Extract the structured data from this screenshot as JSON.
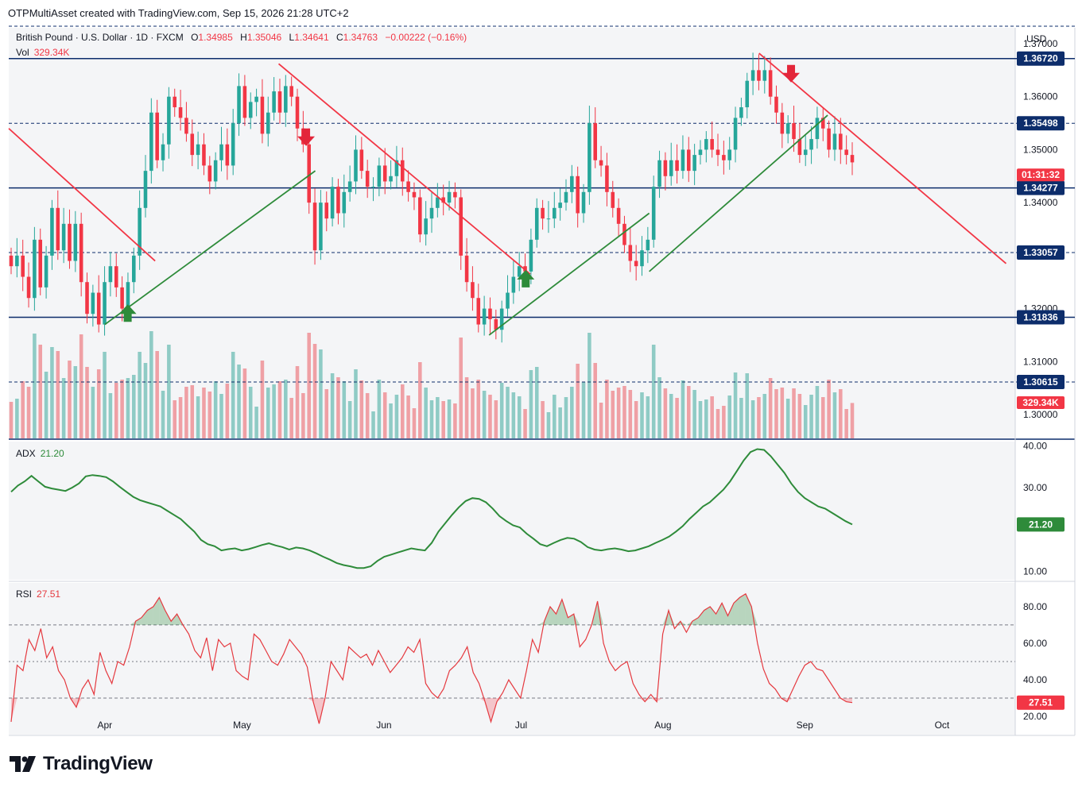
{
  "header": {
    "credit": "OTPMultiAsset created with TradingView.com, Sep 15, 2026 21:28 UTC+2"
  },
  "legend": {
    "symbol": "British Pound · U.S. Dollar · 1D · FXCM",
    "o_label": "O",
    "o": "1.34985",
    "h_label": "H",
    "h": "1.35046",
    "l_label": "L",
    "l": "1.34641",
    "c_label": "C",
    "c": "1.34763",
    "change": "−0.00222 (−0.16%)",
    "vol_label": "Vol",
    "vol_value": "329.34K",
    "adx_label": "ADX",
    "adx_value": "21.20",
    "rsi_label": "RSI",
    "rsi_value": "27.51"
  },
  "colors": {
    "up": "#26a69a",
    "down": "#f23645",
    "vol_up": "#8fcbc5",
    "vol_down": "#efa0a5",
    "navy": "#0d2d6b",
    "adx": "#2e8b3a",
    "rsi": "#e5393f",
    "trend_green": "#2e8b3a",
    "trend_red": "#f23645"
  },
  "brand": {
    "name": "TradingView"
  },
  "chart_data": {
    "type": "candlestick",
    "currency_label": "USD",
    "price_axis": {
      "ylim": [
        1.2955,
        1.373
      ],
      "ticks": [
        "1.37000",
        "1.36000",
        "1.35000",
        "1.34000",
        "1.32000",
        "1.31000",
        "1.30000"
      ]
    },
    "x_axis": {
      "labels": [
        "Apr",
        "May",
        "Jun",
        "Jul",
        "Aug",
        "Sep",
        "Oct"
      ],
      "dates": [
        "2026-04-01",
        "2026-05-01",
        "2026-06-01",
        "2026-07-01",
        "2026-08-01",
        "2026-09-01",
        "2026-10-01"
      ],
      "range": [
        "2026-03-11",
        "2026-10-17"
      ]
    },
    "horizontal_levels": [
      {
        "value": 1.3672,
        "label": "1.36720",
        "style": "solid"
      },
      {
        "value": 1.35498,
        "label": "1.35498",
        "style": "dashed"
      },
      {
        "value": 1.34277,
        "label": "1.34277",
        "style": "solid"
      },
      {
        "value": 1.33057,
        "label": "1.33057",
        "style": "dashed"
      },
      {
        "value": 1.31836,
        "label": "1.31836",
        "style": "solid"
      },
      {
        "value": 1.30615,
        "label": "1.30615",
        "style": "dashed"
      }
    ],
    "last_price": {
      "value": 1.34763,
      "label": "1.34763",
      "countdown": "01:31:32"
    },
    "trendlines": [
      {
        "color": "red",
        "from": [
          "2026-03-11",
          1.354
        ],
        "to": [
          "2026-04-12",
          1.329
        ]
      },
      {
        "color": "green",
        "from": [
          "2026-04-01",
          1.317
        ],
        "to": [
          "2026-05-17",
          1.346
        ]
      },
      {
        "color": "red",
        "from": [
          "2026-05-09",
          1.3662
        ],
        "to": [
          "2026-07-03",
          1.3265
        ]
      },
      {
        "color": "green",
        "from": [
          "2026-06-24",
          1.315
        ],
        "to": [
          "2026-07-29",
          1.338
        ]
      },
      {
        "color": "green",
        "from": [
          "2026-07-29",
          1.327
        ],
        "to": [
          "2026-09-06",
          1.3565
        ]
      },
      {
        "color": "red",
        "from": [
          "2026-08-22",
          1.3682
        ],
        "to": [
          "2026-10-15",
          1.3285
        ]
      }
    ],
    "signals": [
      {
        "type": "buy",
        "date": "2026-04-06",
        "price": 1.319
      },
      {
        "type": "sell",
        "date": "2026-05-15",
        "price": 1.3525
      },
      {
        "type": "buy",
        "date": "2026-07-02",
        "price": 1.3255
      },
      {
        "type": "sell",
        "date": "2026-08-29",
        "price": 1.3645
      }
    ],
    "candles_close": [
      1.328,
      1.33,
      1.326,
      1.322,
      1.333,
      1.324,
      1.33,
      1.339,
      1.331,
      1.336,
      1.329,
      1.336,
      1.325,
      1.319,
      1.323,
      1.317,
      1.325,
      1.328,
      1.324,
      1.32,
      1.325,
      1.33,
      1.339,
      1.346,
      1.357,
      1.348,
      1.351,
      1.36,
      1.358,
      1.356,
      1.353,
      1.349,
      1.351,
      1.347,
      1.344,
      1.348,
      1.351,
      1.347,
      1.355,
      1.362,
      1.356,
      1.359,
      1.36,
      1.353,
      1.357,
      1.361,
      1.357,
      1.362,
      1.36,
      1.354,
      1.351,
      1.34,
      1.331,
      1.34,
      1.337,
      1.343,
      1.338,
      1.342,
      1.344,
      1.35,
      1.346,
      1.343,
      1.343,
      1.347,
      1.344,
      1.345,
      1.348,
      1.344,
      1.342,
      1.341,
      1.334,
      1.337,
      1.339,
      1.341,
      1.34,
      1.342,
      1.341,
      1.33,
      1.325,
      1.322,
      1.317,
      1.32,
      1.318,
      1.316,
      1.32,
      1.323,
      1.326,
      1.328,
      1.327,
      1.333,
      1.339,
      1.337,
      1.337,
      1.339,
      1.34,
      1.342,
      1.345,
      1.338,
      1.342,
      1.355,
      1.348,
      1.347,
      1.342,
      1.339,
      1.336,
      1.332,
      1.329,
      1.328,
      1.331,
      1.333,
      1.343,
      1.348,
      1.345,
      1.348,
      1.346,
      1.35,
      1.346,
      1.349,
      1.35,
      1.352,
      1.35,
      1.349,
      1.348,
      1.35,
      1.356,
      1.358,
      1.363,
      1.365,
      1.363,
      1.365,
      1.36,
      1.357,
      1.353,
      1.355,
      1.352,
      1.349,
      1.35,
      1.352,
      1.356,
      1.354,
      1.35,
      1.353,
      1.35,
      1.349,
      1.3476
    ],
    "volume": {
      "label": "329.34K",
      "last_value_k": 329.34
    },
    "adx": {
      "ylim": [
        8,
        41
      ],
      "ticks": [
        "40.00",
        "30.00",
        "10.00"
      ],
      "last": 21.2,
      "values": [
        29.0,
        30.5,
        31.5,
        32.8,
        31.5,
        30.2,
        29.8,
        29.5,
        29.2,
        30.0,
        31.0,
        32.7,
        33.0,
        32.8,
        32.5,
        31.5,
        30.2,
        29.0,
        27.8,
        27.0,
        26.5,
        26.0,
        25.5,
        24.5,
        23.5,
        22.5,
        21.0,
        19.5,
        17.5,
        16.5,
        16.0,
        15.0,
        15.3,
        15.5,
        15.0,
        15.3,
        15.8,
        16.3,
        16.7,
        16.2,
        15.8,
        15.2,
        15.7,
        15.5,
        15.0,
        14.3,
        13.5,
        12.8,
        12.0,
        11.5,
        11.2,
        10.8,
        10.8,
        11.2,
        12.5,
        13.5,
        14.0,
        14.5,
        15.0,
        15.5,
        15.2,
        15.0,
        16.8,
        19.5,
        21.5,
        23.5,
        25.3,
        26.8,
        27.5,
        27.3,
        26.5,
        25.0,
        23.2,
        22.0,
        21.0,
        20.5,
        19.0,
        17.8,
        16.5,
        16.0,
        16.8,
        17.5,
        18.0,
        17.8,
        17.0,
        15.8,
        15.2,
        15.0,
        15.3,
        15.5,
        15.2,
        14.8,
        15.0,
        15.5,
        16.0,
        16.8,
        17.5,
        18.3,
        19.5,
        20.8,
        22.5,
        24.0,
        25.5,
        26.5,
        28.0,
        29.5,
        31.5,
        34.0,
        36.5,
        38.5,
        39.2,
        39.0,
        37.5,
        35.5,
        33.5,
        31.0,
        29.0,
        27.5,
        26.5,
        25.5,
        25.0,
        24.0,
        23.0,
        22.0,
        21.2
      ]
    },
    "rsi": {
      "ylim": [
        10,
        93
      ],
      "ticks": [
        "80.00",
        "60.00",
        "40.00",
        "20.00"
      ],
      "bands": [
        70,
        50,
        30
      ],
      "last": 27.51,
      "values": [
        17,
        48,
        45,
        62,
        56,
        68,
        52,
        58,
        45,
        40,
        30,
        25,
        35,
        40,
        32,
        55,
        45,
        38,
        50,
        48,
        58,
        72,
        74,
        78,
        80,
        85,
        78,
        72,
        76,
        70,
        65,
        56,
        52,
        63,
        45,
        62,
        58,
        60,
        45,
        42,
        40,
        65,
        62,
        56,
        50,
        48,
        54,
        62,
        58,
        54,
        47,
        28,
        16,
        30,
        50,
        45,
        40,
        58,
        55,
        52,
        54,
        48,
        56,
        50,
        44,
        48,
        52,
        58,
        55,
        62,
        38,
        33,
        30,
        35,
        45,
        48,
        52,
        58,
        44,
        38,
        28,
        17,
        28,
        33,
        40,
        35,
        30,
        45,
        62,
        55,
        72,
        80,
        76,
        84,
        74,
        76,
        58,
        62,
        70,
        83,
        60,
        50,
        45,
        48,
        50,
        38,
        32,
        28,
        32,
        28,
        65,
        78,
        68,
        72,
        66,
        72,
        74,
        78,
        80,
        76,
        82,
        75,
        82,
        85,
        87,
        80,
        60,
        46,
        38,
        35,
        30,
        28,
        35,
        42,
        48,
        50,
        46,
        45,
        40,
        35,
        30,
        28,
        27.5
      ]
    }
  }
}
